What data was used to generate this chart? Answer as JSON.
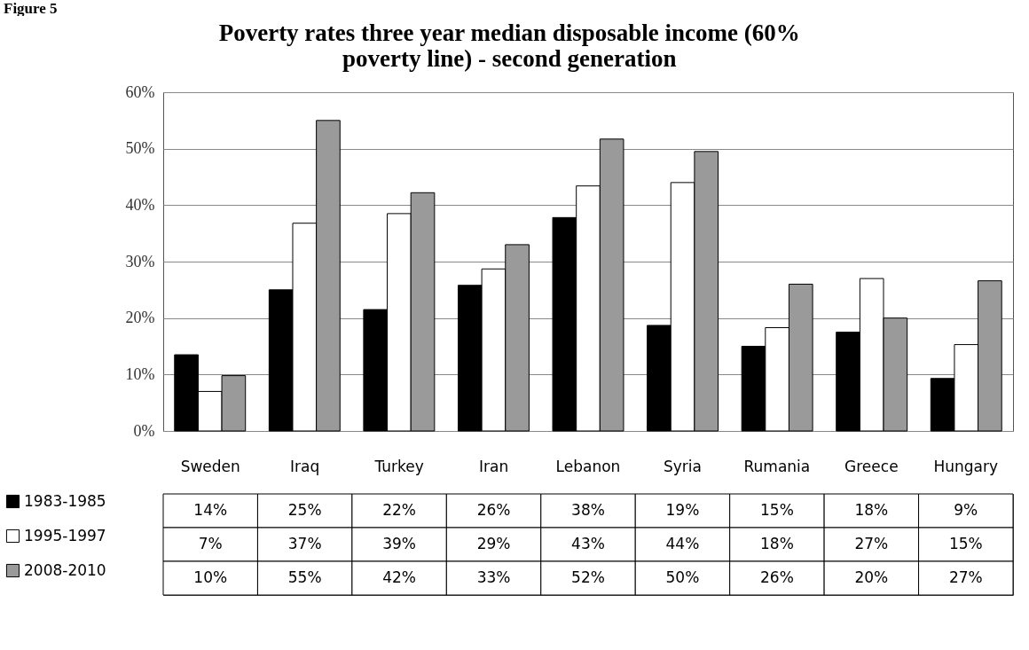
{
  "chart_data": {
    "type": "bar",
    "title": "Poverty rates   three year median disposable income (60% poverty line) - second generation",
    "annotations": [
      "Figure 5"
    ],
    "categories": [
      "Sweden",
      "Iraq",
      "Turkey",
      "Iran",
      "Lebanon",
      "Syria",
      "Rumania",
      "Greece",
      "Hungary"
    ],
    "series": [
      {
        "name": "1983-1985",
        "color": "#000000",
        "values": [
          13.5,
          25,
          21.5,
          25.8,
          37.8,
          18.7,
          15,
          17.5,
          9.3
        ],
        "value_labels": [
          "14%",
          "25%",
          "22%",
          "26%",
          "38%",
          "19%",
          "15%",
          "18%",
          "9%"
        ]
      },
      {
        "name": "1995-1997",
        "color": "#ffffff",
        "values": [
          7,
          36.8,
          38.5,
          28.7,
          43.4,
          44,
          18.3,
          27,
          15.3
        ],
        "value_labels": [
          "7%",
          "37%",
          "39%",
          "29%",
          "43%",
          "44%",
          "18%",
          "27%",
          "15%"
        ]
      },
      {
        "name": "2008-2010",
        "color": "#9a9a9a",
        "values": [
          9.8,
          55,
          42.2,
          33,
          51.7,
          49.5,
          26,
          20,
          26.6
        ],
        "value_labels": [
          "10%",
          "55%",
          "42%",
          "33%",
          "52%",
          "50%",
          "26%",
          "20%",
          "27%"
        ]
      }
    ],
    "ylim": [
      0,
      60
    ],
    "yticks": [
      {
        "value": 0,
        "label": "0%"
      },
      {
        "value": 10,
        "label": "10%"
      },
      {
        "value": 20,
        "label": "20%"
      },
      {
        "value": 30,
        "label": "30%"
      },
      {
        "value": 40,
        "label": "40%"
      },
      {
        "value": 50,
        "label": "50%"
      },
      {
        "value": 60,
        "label": "60%"
      }
    ],
    "grid": "y",
    "legend": "bottom left"
  }
}
